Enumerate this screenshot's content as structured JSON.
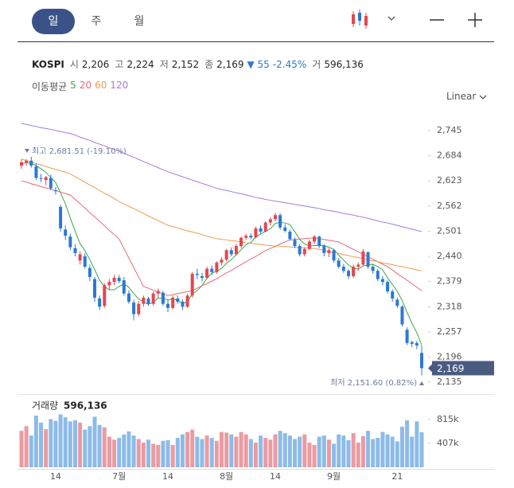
{
  "toolbar": {
    "tabs": [
      "일",
      "주",
      "월"
    ],
    "scale": "Linear"
  },
  "header": {
    "symbol": "KOSPI",
    "fields": [
      {
        "label": "시",
        "value": "2,206"
      },
      {
        "label": "고",
        "value": "2,224"
      },
      {
        "label": "저",
        "value": "2,152"
      },
      {
        "label": "종",
        "value": "2,169"
      }
    ],
    "change": "▼ 55",
    "change_pct": "-2.45%",
    "volume_label": "거",
    "volume": "596,136",
    "ma_label": "이동평균"
  },
  "chart_data": [
    {
      "type": "candlestick",
      "categories": [
        null,
        null,
        null,
        null,
        null,
        null,
        null,
        "14",
        null,
        null,
        null,
        null,
        null,
        null,
        null,
        null,
        null,
        null,
        null,
        null,
        "7월",
        null,
        null,
        null,
        null,
        null,
        null,
        null,
        null,
        null,
        "14",
        null,
        null,
        null,
        null,
        null,
        null,
        null,
        null,
        null,
        null,
        null,
        "8월",
        null,
        null,
        null,
        null,
        null,
        null,
        null,
        null,
        null,
        "14",
        null,
        null,
        null,
        null,
        null,
        null,
        null,
        null,
        null,
        null,
        null,
        "9월",
        null,
        null,
        null,
        null,
        null,
        null,
        null,
        null,
        null,
        null,
        null,
        null,
        "21",
        null,
        null,
        null,
        null,
        null
      ],
      "open": [
        2660,
        2668,
        2672,
        2658,
        2630,
        2625,
        2630,
        2600,
        2560,
        2505,
        2488,
        2460,
        2430,
        2440,
        2412,
        2385,
        2338,
        2320,
        2370,
        2378,
        2388,
        2382,
        2350,
        2328,
        2300,
        2325,
        2338,
        2325,
        2350,
        2352,
        2325,
        2315,
        2338,
        2330,
        2318,
        2345,
        2398,
        2392,
        2388,
        2410,
        2402,
        2425,
        2432,
        2455,
        2445,
        2465,
        2485,
        2490,
        2486,
        2508,
        2500,
        2522,
        2530,
        2540,
        2510,
        2500,
        2480,
        2465,
        2445,
        2458,
        2476,
        2488,
        2465,
        2448,
        2455,
        2430,
        2415,
        2405,
        2392,
        2415,
        2420,
        2450,
        2415,
        2405,
        2385,
        2378,
        2355,
        2335,
        2318,
        2262,
        2232,
        2230,
        2206
      ],
      "high": [
        2675,
        2676,
        2681.51,
        2666,
        2640,
        2635,
        2638,
        2608,
        2565,
        2515,
        2495,
        2470,
        2452,
        2448,
        2420,
        2390,
        2345,
        2375,
        2385,
        2395,
        2395,
        2390,
        2358,
        2335,
        2332,
        2345,
        2342,
        2355,
        2362,
        2356,
        2335,
        2345,
        2345,
        2336,
        2350,
        2402,
        2410,
        2400,
        2415,
        2418,
        2428,
        2438,
        2458,
        2462,
        2470,
        2488,
        2495,
        2496,
        2512,
        2515,
        2525,
        2535,
        2546,
        2545,
        2518,
        2505,
        2486,
        2470,
        2462,
        2480,
        2492,
        2490,
        2470,
        2460,
        2458,
        2436,
        2422,
        2410,
        2420,
        2425,
        2458,
        2452,
        2420,
        2410,
        2392,
        2382,
        2360,
        2340,
        2322,
        2268,
        2236,
        2235,
        2224
      ],
      "low": [
        2652,
        2660,
        2655,
        2625,
        2620,
        2612,
        2600,
        2590,
        2500,
        2480,
        2455,
        2440,
        2420,
        2410,
        2380,
        2330,
        2310,
        2315,
        2360,
        2370,
        2375,
        2345,
        2325,
        2285,
        2295,
        2318,
        2320,
        2320,
        2340,
        2320,
        2305,
        2312,
        2325,
        2310,
        2315,
        2340,
        2385,
        2380,
        2385,
        2395,
        2398,
        2418,
        2428,
        2440,
        2442,
        2460,
        2480,
        2482,
        2484,
        2495,
        2498,
        2515,
        2525,
        2505,
        2498,
        2478,
        2460,
        2440,
        2440,
        2455,
        2470,
        2460,
        2440,
        2438,
        2425,
        2410,
        2400,
        2385,
        2388,
        2405,
        2418,
        2410,
        2398,
        2380,
        2370,
        2350,
        2330,
        2315,
        2270,
        2225,
        2220,
        2215,
        2151.6
      ],
      "close": [
        2668,
        2672,
        2660,
        2630,
        2628,
        2632,
        2605,
        2598,
        2508,
        2490,
        2462,
        2448,
        2445,
        2415,
        2390,
        2340,
        2318,
        2370,
        2378,
        2388,
        2380,
        2350,
        2330,
        2300,
        2325,
        2340,
        2325,
        2350,
        2356,
        2325,
        2315,
        2340,
        2330,
        2318,
        2345,
        2398,
        2395,
        2388,
        2410,
        2402,
        2425,
        2432,
        2455,
        2445,
        2465,
        2485,
        2490,
        2486,
        2508,
        2500,
        2522,
        2530,
        2540,
        2510,
        2502,
        2482,
        2465,
        2445,
        2458,
        2476,
        2488,
        2465,
        2448,
        2455,
        2430,
        2415,
        2405,
        2392,
        2415,
        2420,
        2452,
        2415,
        2405,
        2385,
        2378,
        2355,
        2338,
        2320,
        2275,
        2230,
        2228,
        2224,
        2169
      ],
      "up_color": "#e5464f",
      "down_color": "#2c78d4",
      "series": [
        {
          "name": "5",
          "color": "#3aa84a",
          "values": [
            2665,
            2667,
            2666,
            2660,
            2652,
            2644,
            2631,
            2619,
            2594,
            2567,
            2533,
            2501,
            2471,
            2454,
            2432,
            2408,
            2382,
            2367,
            2359,
            2359,
            2367,
            2373,
            2365,
            2350,
            2337,
            2329,
            2324,
            2328,
            2339,
            2339,
            2334,
            2337,
            2333,
            2326,
            2330,
            2349,
            2357,
            2369,
            2387,
            2399,
            2404,
            2411,
            2423,
            2432,
            2444,
            2456,
            2468,
            2474,
            2487,
            2494,
            2501,
            2507,
            2520,
            2522,
            2521,
            2517,
            2500,
            2481,
            2470,
            2465,
            2466,
            2466,
            2466,
            2462,
            2457,
            2443,
            2431,
            2419,
            2411,
            2409,
            2417,
            2419,
            2421,
            2415,
            2407,
            2388,
            2372,
            2355,
            2333,
            2304,
            2278,
            2255,
            2225
          ]
        },
        {
          "name": "20",
          "color": "#e46b7a",
          "values": [
            2623,
            2620,
            2616,
            2613,
            2609,
            2606,
            2603,
            2599,
            2596,
            2592,
            2589,
            2578,
            2568,
            2557,
            2546,
            2536,
            2525,
            2514,
            2503,
            2493,
            2482,
            2459,
            2436,
            2413,
            2390,
            2367,
            2363,
            2358,
            2354,
            2349,
            2345,
            2347,
            2350,
            2352,
            2355,
            2357,
            2363,
            2369,
            2374,
            2380,
            2386,
            2393,
            2400,
            2406,
            2413,
            2420,
            2427,
            2434,
            2440,
            2447,
            2454,
            2459,
            2464,
            2470,
            2475,
            2480,
            2481,
            2482,
            2483,
            2484,
            2485,
            2483,
            2481,
            2479,
            2477,
            2475,
            2469,
            2463,
            2457,
            2451,
            2445,
            2439,
            2433,
            2427,
            2421,
            2415,
            2407,
            2398,
            2390,
            2382,
            2374,
            2365,
            2357
          ]
        },
        {
          "name": "60",
          "color": "#ef9b4c",
          "values": [
            2676,
            2672,
            2669,
            2665,
            2662,
            2658,
            2654,
            2651,
            2647,
            2644,
            2640,
            2633,
            2627,
            2620,
            2613,
            2607,
            2600,
            2593,
            2587,
            2580,
            2573,
            2567,
            2561,
            2556,
            2550,
            2544,
            2538,
            2532,
            2527,
            2521,
            2515,
            2512,
            2509,
            2505,
            2502,
            2499,
            2496,
            2493,
            2489,
            2486,
            2483,
            2481,
            2480,
            2478,
            2477,
            2475,
            2473,
            2472,
            2470,
            2469,
            2467,
            2466,
            2465,
            2465,
            2464,
            2463,
            2462,
            2461,
            2461,
            2460,
            2459,
            2457,
            2454,
            2452,
            2449,
            2447,
            2444,
            2442,
            2439,
            2437,
            2434,
            2432,
            2429,
            2427,
            2424,
            2422,
            2420,
            2417,
            2415,
            2412,
            2410,
            2407,
            2405
          ]
        },
        {
          "name": "120",
          "color": "#a57bdc",
          "values": [
            2762,
            2760,
            2757,
            2755,
            2752,
            2750,
            2748,
            2745,
            2743,
            2740,
            2738,
            2734,
            2729,
            2725,
            2721,
            2716,
            2712,
            2708,
            2703,
            2699,
            2695,
            2690,
            2685,
            2680,
            2675,
            2670,
            2665,
            2660,
            2655,
            2650,
            2645,
            2641,
            2637,
            2633,
            2629,
            2625,
            2621,
            2617,
            2613,
            2609,
            2605,
            2602,
            2600,
            2597,
            2594,
            2592,
            2589,
            2586,
            2583,
            2581,
            2578,
            2576,
            2574,
            2572,
            2570,
            2568,
            2566,
            2564,
            2562,
            2560,
            2558,
            2556,
            2553,
            2551,
            2549,
            2547,
            2544,
            2542,
            2540,
            2537,
            2535,
            2532,
            2529,
            2526,
            2523,
            2521,
            2518,
            2515,
            2512,
            2509,
            2506,
            2503,
            2500
          ]
        }
      ],
      "ylim": [
        2112,
        2772
      ],
      "yticks": [
        {
          "value": 2745,
          "label": "2,745"
        },
        {
          "value": 2684,
          "label": "2,684"
        },
        {
          "value": 2623,
          "label": "2,623"
        },
        {
          "value": 2562,
          "label": "2,562"
        },
        {
          "value": 2501,
          "label": "2,501"
        },
        {
          "value": 2440,
          "label": "2,440"
        },
        {
          "value": 2379,
          "label": "2,379"
        },
        {
          "value": 2318,
          "label": "2,318"
        },
        {
          "value": 2257,
          "label": "2,257"
        },
        {
          "value": 2196,
          "label": "2,196"
        },
        {
          "value": 2135,
          "label": "2,135"
        }
      ],
      "last_price": {
        "value": 2169,
        "label": "2,169"
      },
      "last_price_color": "#4b5b80",
      "annotations": [
        "최고 2,681.51 (-19.10%)",
        "최저 2,151.60 (0.82%)"
      ]
    },
    {
      "type": "bar",
      "title": "거래량",
      "subtitle": "596,136",
      "values": [
        620000,
        700000,
        540000,
        880000,
        760000,
        650000,
        820000,
        790000,
        900000,
        850000,
        780000,
        800000,
        760000,
        640000,
        700000,
        860000,
        720000,
        680000,
        520000,
        470000,
        500000,
        560000,
        610000,
        540000,
        480000,
        420000,
        470000,
        400000,
        380000,
        450000,
        460000,
        380000,
        500000,
        560000,
        600000,
        640000,
        520000,
        480000,
        540000,
        500000,
        450000,
        600000,
        590000,
        560000,
        520000,
        600000,
        560000,
        480000,
        420000,
        540000,
        500000,
        470000,
        560000,
        620000,
        580000,
        540000,
        480000,
        520000,
        560000,
        420000,
        380000,
        520000,
        540000,
        470000,
        400000,
        560000,
        540000,
        460000,
        580000,
        420000,
        530000,
        620000,
        480000,
        500000,
        600000,
        560000,
        520000,
        440000,
        690000,
        800000,
        520000,
        780000,
        596136
      ],
      "up_color": "#eb9aa1",
      "down_color": "#8cbbe9",
      "ylim": [
        0,
        1110000
      ],
      "yticks": [
        {
          "value": 815000,
          "label": "815k"
        },
        {
          "value": 407000,
          "label": "407k"
        }
      ]
    }
  ]
}
